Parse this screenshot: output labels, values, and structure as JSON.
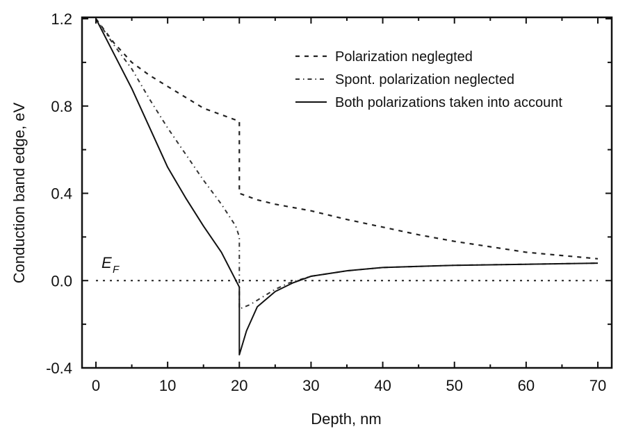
{
  "chart_data": {
    "type": "line",
    "title": "",
    "xlabel": "Depth, nm",
    "ylabel": "Conduction band edge, eV",
    "xlim": [
      -2,
      72
    ],
    "ylim": [
      -0.4,
      1.2
    ],
    "x_ticks": [
      0,
      10,
      20,
      30,
      40,
      50,
      60,
      70
    ],
    "x_tick_labels": [
      "0",
      "10",
      "20",
      "30",
      "40",
      "50",
      "60",
      "70"
    ],
    "x_minor_ticks": [
      5,
      15,
      25,
      35,
      45,
      55,
      65
    ],
    "y_ticks": [
      -0.4,
      0.0,
      0.4,
      0.8,
      1.2
    ],
    "y_tick_labels": [
      "-0.4",
      "0.0",
      "0.4",
      "0.8",
      "1.2"
    ],
    "y_minor_ticks": [
      -0.2,
      0.2,
      0.6,
      1.0
    ],
    "grid": false,
    "legend_position": "top-right",
    "annotations": [
      {
        "text": "E",
        "subscript": "F",
        "x": 1,
        "y": 0.05
      }
    ],
    "reference_line": {
      "name": "Fermi level",
      "y": 0.0,
      "style": "dotted"
    },
    "series": [
      {
        "name": "Polarization neglegted",
        "style": "dashed",
        "x": [
          0,
          2.5,
          5,
          7.5,
          10,
          12.5,
          15,
          17.5,
          20,
          20,
          22.5,
          25,
          30,
          35,
          40,
          45,
          50,
          55,
          60,
          65,
          70
        ],
        "y": [
          1.2,
          1.09,
          1.0,
          0.94,
          0.89,
          0.84,
          0.79,
          0.76,
          0.73,
          0.4,
          0.37,
          0.35,
          0.32,
          0.28,
          0.245,
          0.21,
          0.18,
          0.155,
          0.13,
          0.115,
          0.1
        ]
      },
      {
        "name": "Spont. polarization neglected",
        "style": "dash-dot",
        "x": [
          0,
          2.5,
          5,
          7.5,
          10,
          12.5,
          15,
          17.5,
          19.5,
          20,
          20,
          21.5,
          23,
          25,
          27,
          30,
          35,
          40,
          50,
          60,
          70
        ],
        "y": [
          1.2,
          1.08,
          0.97,
          0.83,
          0.7,
          0.58,
          0.46,
          0.35,
          0.25,
          0.2,
          -0.13,
          -0.11,
          -0.08,
          -0.04,
          -0.01,
          0.02,
          0.045,
          0.06,
          0.07,
          0.075,
          0.08
        ]
      },
      {
        "name": "Both polarizations taken into account",
        "style": "solid",
        "x": [
          0,
          2.5,
          5,
          7.5,
          10,
          12.5,
          15,
          17.5,
          20,
          20,
          21,
          22.5,
          25,
          27.5,
          30,
          35,
          40,
          45,
          50,
          60,
          70
        ],
        "y": [
          1.2,
          1.04,
          0.88,
          0.7,
          0.52,
          0.38,
          0.25,
          0.13,
          -0.03,
          -0.34,
          -0.23,
          -0.12,
          -0.05,
          -0.01,
          0.02,
          0.045,
          0.06,
          0.065,
          0.07,
          0.075,
          0.08
        ]
      }
    ]
  }
}
